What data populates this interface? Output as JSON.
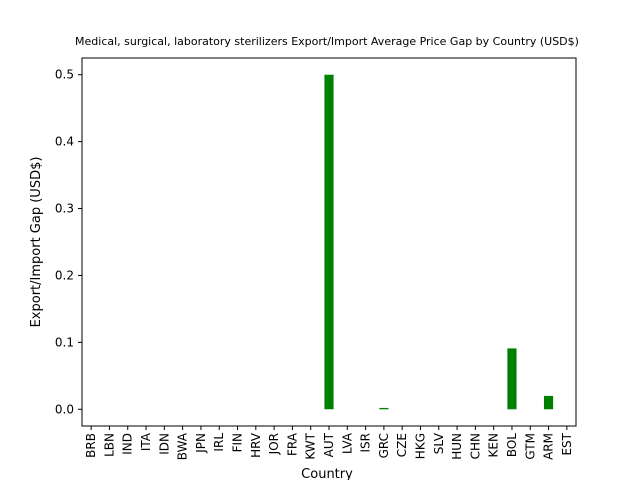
{
  "chart_data": {
    "type": "bar",
    "title": "Medical, surgical, laboratory sterilizers Export/Import Average Price Gap by Country (USD$)",
    "xlabel": "Country",
    "ylabel": "Export/Import Gap (USD$)",
    "categories": [
      "BRB",
      "LBN",
      "IND",
      "ITA",
      "IDN",
      "BWA",
      "JPN",
      "IRL",
      "FIN",
      "HRV",
      "JOR",
      "FRA",
      "KWT",
      "AUT",
      "LVA",
      "ISR",
      "GRC",
      "CZE",
      "HKG",
      "SLV",
      "HUN",
      "CHN",
      "KEN",
      "BOL",
      "GTM",
      "ARM",
      "EST"
    ],
    "values": [
      0,
      0,
      0,
      0,
      0,
      0,
      0,
      0,
      0,
      0,
      0,
      0,
      0,
      0.5,
      0,
      0,
      0.002,
      0,
      0,
      0,
      0,
      0,
      0,
      0.091,
      0,
      0.02,
      0
    ],
    "color": "#008000",
    "ylim": [
      -0.025,
      0.525
    ],
    "yticks": [
      {
        "value": 0,
        "label": "0.0"
      },
      0.1,
      0.2,
      0.3,
      0.4,
      0.5
    ]
  }
}
